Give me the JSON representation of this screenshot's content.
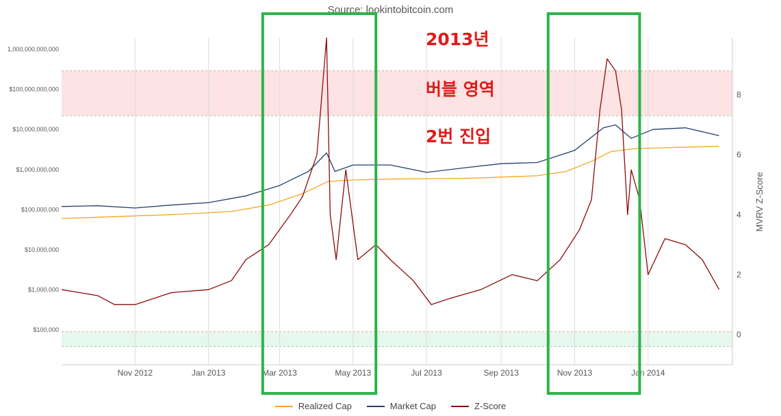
{
  "source_text": "Source: lookintobitcoin.com",
  "annotations": [
    "2013년",
    "버블 영역",
    "2번 진입"
  ],
  "colors": {
    "realized_cap": "#f5a623",
    "market_cap": "#1f3f6e",
    "z_score": "#8b0a0a",
    "upper_band": "#fde3e3",
    "lower_band": "#e6f7ee",
    "highlight_box": "#2db34a"
  },
  "chart_data": {
    "type": "line",
    "xlabel": "",
    "ylabel_left": "",
    "ylabel_right": "MVRV Z-Score",
    "x_ticks": [
      "Nov 2012",
      "Jan 2013",
      "Mar 2013",
      "May 2013",
      "Jul 2013",
      "Sep 2013",
      "Nov 2013",
      "Jan 2014"
    ],
    "y_left_ticks": [
      "1,000,000,000,000",
      "$100,000,000,000",
      "$10,000,000,000",
      "$1,000,000,000",
      "$100,000,000",
      "$10,000,000",
      "$1,000,000",
      "$100,000"
    ],
    "y_right_ticks": [
      "8",
      "6",
      "4",
      "2",
      "0"
    ],
    "y_left_scale": "log",
    "y_right_range": [
      -0.5,
      10
    ],
    "bands": [
      {
        "axis": "right",
        "from": 7.3,
        "to": 8.8,
        "fill": "upper_band"
      },
      {
        "axis": "right",
        "from": -0.4,
        "to": 0.1,
        "fill": "lower_band"
      }
    ],
    "highlights": [
      {
        "from": "2013-02-15",
        "to": "2013-05-20"
      },
      {
        "from": "2013-10-10",
        "to": "2013-12-25"
      }
    ],
    "series": [
      {
        "name": "Realized Cap",
        "axis": "left",
        "color": "realized_cap",
        "points": [
          [
            "2012-09-01",
            60000000
          ],
          [
            "2012-12-01",
            75000000
          ],
          [
            "2013-01-20",
            90000000
          ],
          [
            "2013-02-20",
            130000000
          ],
          [
            "2013-03-20",
            250000000
          ],
          [
            "2013-04-10",
            500000000
          ],
          [
            "2013-05-01",
            550000000
          ],
          [
            "2013-06-01",
            580000000
          ],
          [
            "2013-08-01",
            600000000
          ],
          [
            "2013-10-01",
            700000000
          ],
          [
            "2013-10-25",
            900000000
          ],
          [
            "2013-11-15",
            1600000000
          ],
          [
            "2013-12-01",
            2800000000
          ],
          [
            "2013-12-20",
            3300000000
          ],
          [
            "2014-01-15",
            3500000000
          ],
          [
            "2014-03-01",
            3800000000
          ]
        ]
      },
      {
        "name": "Market Cap",
        "axis": "left",
        "color": "market_cap",
        "points": [
          [
            "2012-09-01",
            120000000
          ],
          [
            "2012-10-01",
            125000000
          ],
          [
            "2012-11-01",
            110000000
          ],
          [
            "2012-12-01",
            130000000
          ],
          [
            "2013-01-01",
            150000000
          ],
          [
            "2013-02-01",
            220000000
          ],
          [
            "2013-03-01",
            400000000
          ],
          [
            "2013-03-25",
            900000000
          ],
          [
            "2013-04-09",
            2600000000
          ],
          [
            "2013-04-16",
            900000000
          ],
          [
            "2013-05-01",
            1300000000
          ],
          [
            "2013-06-01",
            1300000000
          ],
          [
            "2013-07-01",
            850000000
          ],
          [
            "2013-08-01",
            1100000000
          ],
          [
            "2013-09-01",
            1400000000
          ],
          [
            "2013-10-01",
            1500000000
          ],
          [
            "2013-11-01",
            3000000000
          ],
          [
            "2013-11-25",
            11000000000
          ],
          [
            "2013-12-05",
            13000000000
          ],
          [
            "2013-12-18",
            6000000000
          ],
          [
            "2014-01-05",
            10000000000
          ],
          [
            "2014-02-01",
            11000000000
          ],
          [
            "2014-03-01",
            7000000000
          ]
        ]
      },
      {
        "name": "Z-Score",
        "axis": "right",
        "color": "z_score",
        "points": [
          [
            "2012-09-01",
            1.5
          ],
          [
            "2012-10-01",
            1.3
          ],
          [
            "2012-10-15",
            1.0
          ],
          [
            "2012-11-01",
            1.0
          ],
          [
            "2012-12-01",
            1.4
          ],
          [
            "2013-01-01",
            1.5
          ],
          [
            "2013-01-20",
            1.8
          ],
          [
            "2013-02-01",
            2.5
          ],
          [
            "2013-02-20",
            3.0
          ],
          [
            "2013-03-10",
            4.0
          ],
          [
            "2013-03-20",
            4.6
          ],
          [
            "2013-04-01",
            6.0
          ],
          [
            "2013-04-09",
            9.9
          ],
          [
            "2013-04-12",
            4.0
          ],
          [
            "2013-04-17",
            2.5
          ],
          [
            "2013-04-25",
            5.5
          ],
          [
            "2013-05-05",
            2.5
          ],
          [
            "2013-05-20",
            3.0
          ],
          [
            "2013-06-01",
            2.5
          ],
          [
            "2013-06-20",
            1.8
          ],
          [
            "2013-07-05",
            1.0
          ],
          [
            "2013-07-20",
            1.2
          ],
          [
            "2013-08-15",
            1.5
          ],
          [
            "2013-09-10",
            2.0
          ],
          [
            "2013-10-01",
            1.8
          ],
          [
            "2013-10-20",
            2.5
          ],
          [
            "2013-11-05",
            3.5
          ],
          [
            "2013-11-15",
            4.5
          ],
          [
            "2013-11-22",
            7.5
          ],
          [
            "2013-11-28",
            9.2
          ],
          [
            "2013-12-05",
            8.8
          ],
          [
            "2013-12-10",
            7.5
          ],
          [
            "2013-12-15",
            4.0
          ],
          [
            "2013-12-18",
            5.5
          ],
          [
            "2013-12-25",
            4.5
          ],
          [
            "2014-01-01",
            2.0
          ],
          [
            "2014-01-15",
            3.2
          ],
          [
            "2014-02-01",
            3.0
          ],
          [
            "2014-02-15",
            2.5
          ],
          [
            "2014-03-01",
            1.5
          ]
        ]
      }
    ]
  }
}
